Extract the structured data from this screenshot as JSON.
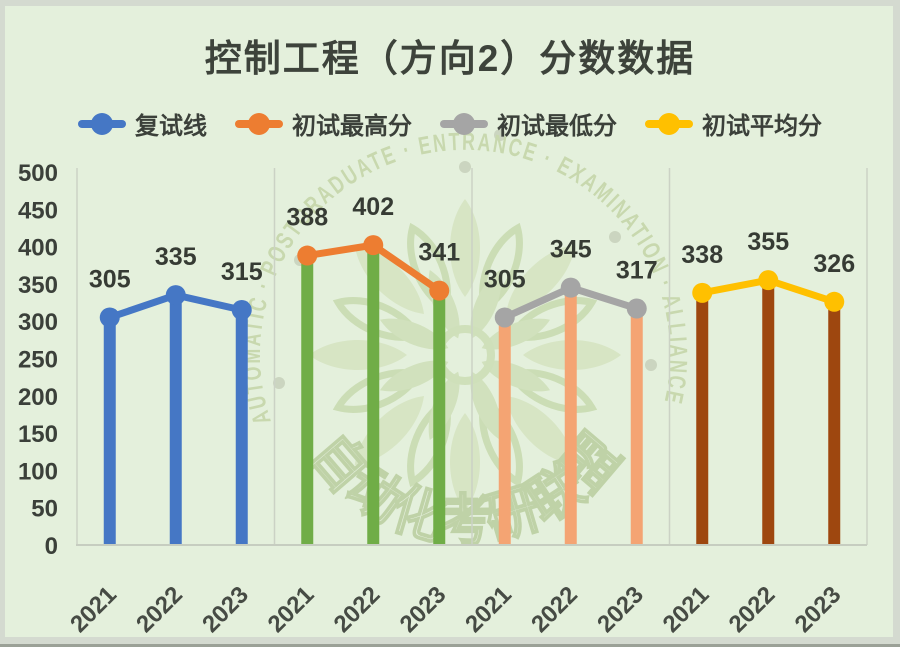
{
  "chart_data": {
    "type": "bar+line",
    "title": "控制工程（方向2）分数数据",
    "categories": [
      "2021",
      "2022",
      "2023"
    ],
    "series": [
      {
        "name": "复试线",
        "values": [
          305,
          335,
          315
        ],
        "line_color": "#4577C5",
        "bar_color": "#4577C5"
      },
      {
        "name": "初试最高分",
        "values": [
          388,
          402,
          341
        ],
        "line_color": "#ED7D31",
        "bar_color": "#70AD47"
      },
      {
        "name": "初试最低分",
        "values": [
          305,
          345,
          317
        ],
        "line_color": "#A5A5A5",
        "bar_color": "#F4A473"
      },
      {
        "name": "初试平均分",
        "values": [
          338,
          355,
          326
        ],
        "line_color": "#FFC000",
        "bar_color": "#9E470F"
      }
    ],
    "ylim": [
      0,
      500
    ],
    "ytick_step": 50,
    "legend_position": "top",
    "grid": "panel-dividers-only",
    "value_labels_shown": true
  },
  "watermark": {
    "ring_text": "AUTOMATIC · POSTGRADUATE · ENTRANCE · EXAMINATION · ALLIANCE",
    "center_text": "自动化考研联盟"
  },
  "colors": {
    "background": "#e4f0dc",
    "outer_frame": "#d4dad0",
    "text_dark": "#3b403a",
    "panel_line": "#cbd2c5",
    "watermark_green": "#c9dbb1"
  }
}
